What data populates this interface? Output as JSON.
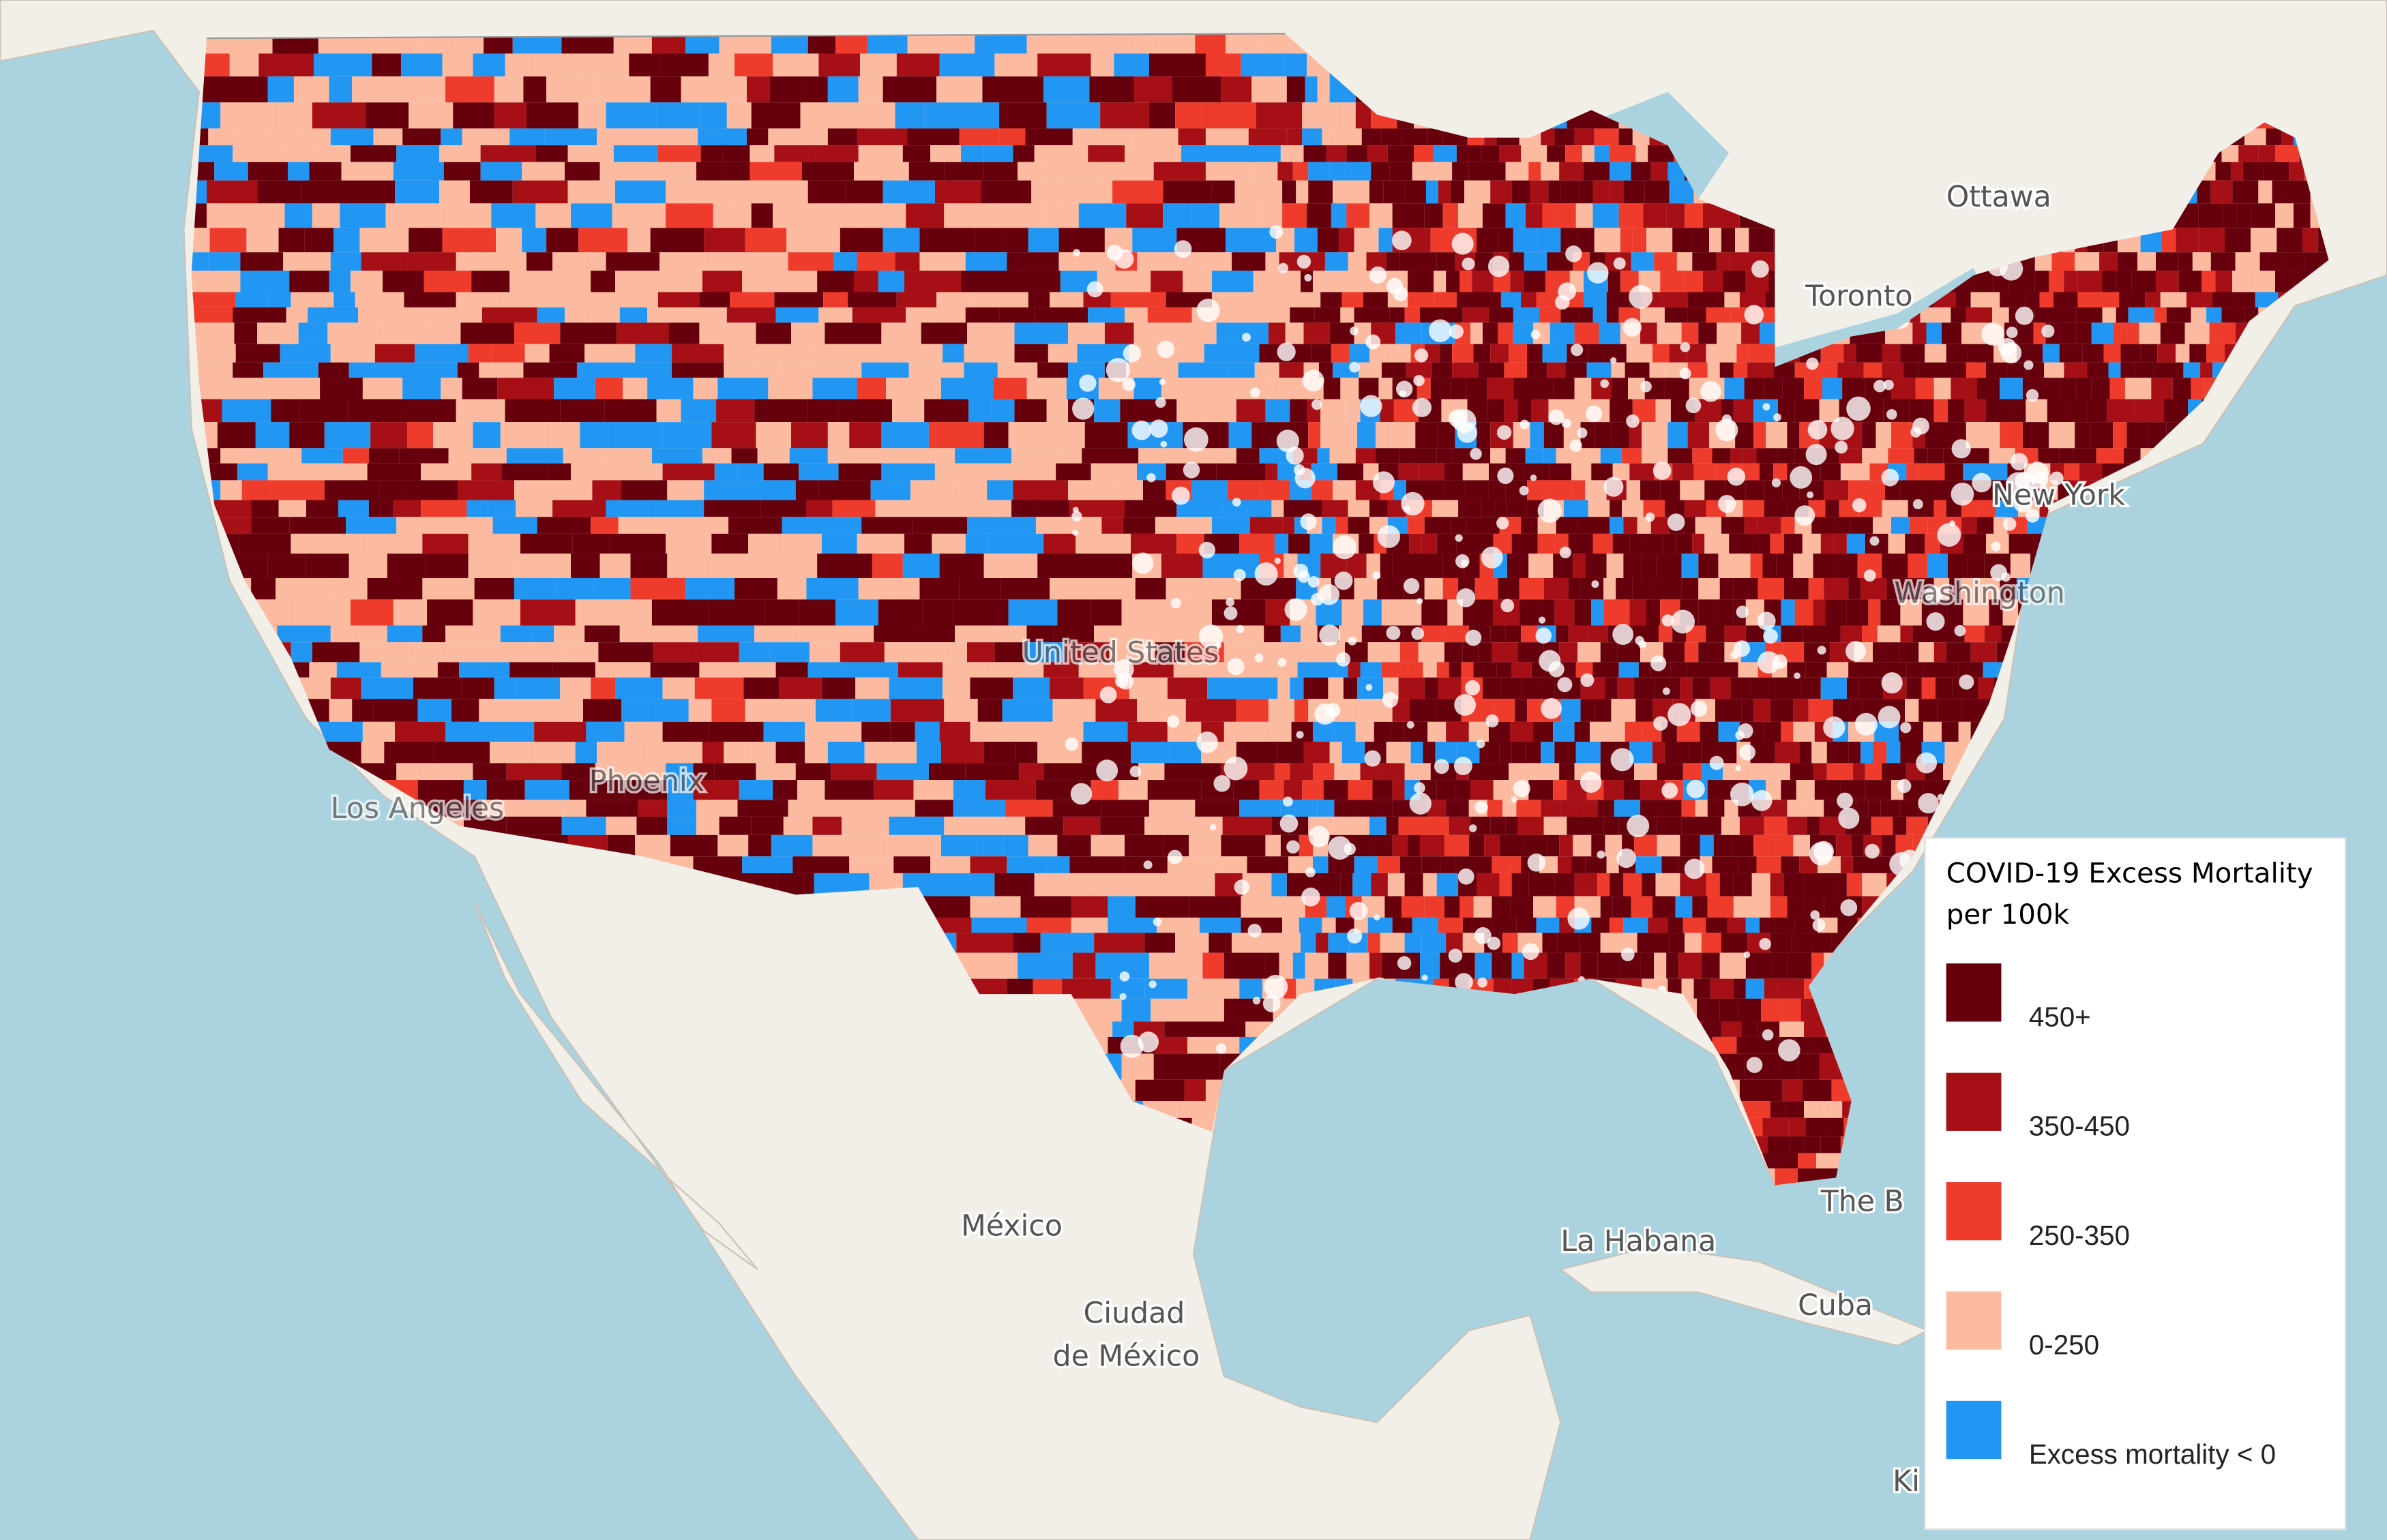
{
  "map": {
    "legend": {
      "title_lines": [
        "COVID-19 Excess Mortality",
        "per 100k"
      ],
      "items": [
        {
          "label": "450+",
          "color": "#67000d"
        },
        {
          "label": "350-450",
          "color": "#a50f15"
        },
        {
          "label": "250-350",
          "color": "#ef3b2c"
        },
        {
          "label": "0-250",
          "color": "#fcbba1"
        },
        {
          "label": "Excess mortality < 0",
          "color": "#2196f3"
        }
      ]
    },
    "places": [
      "Ottawa",
      "Toronto",
      "New York",
      "Washington",
      "Los Angeles",
      "Phoenix",
      "United States",
      "México",
      "Ciudad",
      "de México",
      "La Habana",
      "Cuba",
      "The B",
      "Ki"
    ]
  }
}
